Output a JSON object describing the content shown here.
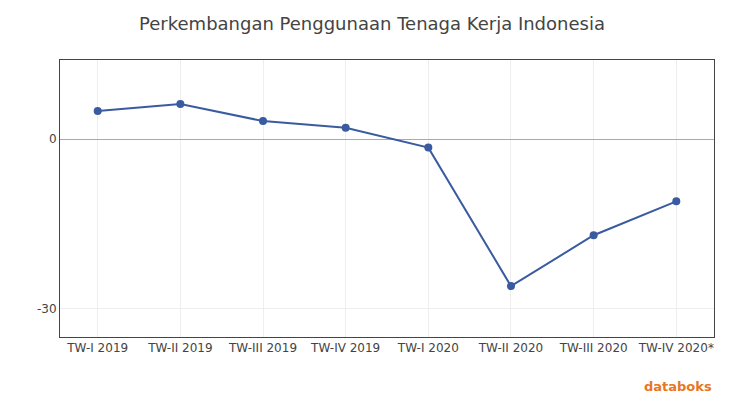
{
  "chart_data": {
    "type": "line",
    "title": "Perkembangan Penggunaan Tenaga Kerja Indonesia",
    "categories": [
      "TW-I 2019",
      "TW-II 2019",
      "TW-III 2019",
      "TW-IV 2019",
      "TW-I 2020",
      "TW-II 2020",
      "TW-III 2020",
      "TW-IV 2020*"
    ],
    "values": [
      5.0,
      6.2,
      3.2,
      2.0,
      -1.5,
      -26.0,
      -17.0,
      -11.0
    ],
    "color": "#3a5ba0",
    "marker": "circle",
    "ylim": [
      -35,
      14
    ],
    "yticks": [
      -30,
      0
    ],
    "grid": true,
    "annotations": [
      "databoks"
    ]
  }
}
